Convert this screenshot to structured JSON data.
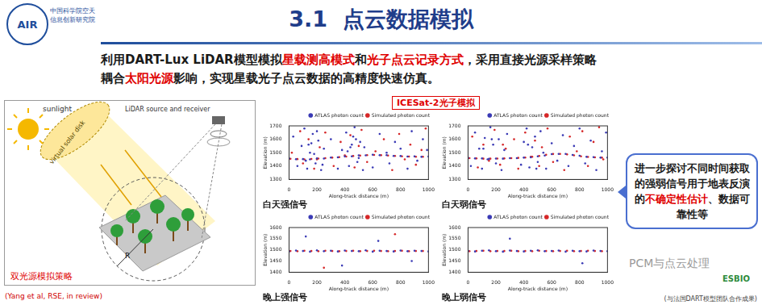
{
  "header": {
    "logo": {
      "abbr": "AIR",
      "org": "中国科学院空天信息创新研究院"
    },
    "title": "3.1  点云数据模拟"
  },
  "intro": [
    [
      {
        "text": "利用DART-Lux LiDAR模型模拟",
        "highlight": false
      },
      {
        "text": "星载测高模式",
        "highlight": true
      },
      {
        "text": "和",
        "highlight": false
      },
      {
        "text": "光子点云记录方式",
        "highlight": true
      },
      {
        "text": "，采用直接光源采样策略",
        "highlight": false
      }
    ],
    [
      {
        "text": "耦合",
        "highlight": false
      },
      {
        "text": "太阳光源",
        "highlight": true
      },
      {
        "text": "影响，实现星载光子点云数据的高精度快速仿真。",
        "highlight": false
      }
    ]
  ],
  "diagram": {
    "sunlight": "sunlight",
    "disk": "virtual solar disk",
    "lidar": "LiDAR source and receiver",
    "radius": "R",
    "caption": "双光源模拟策略",
    "citation": "(Yang et al, RSE, in review)"
  },
  "panel_title": "ICESat-2光子模拟",
  "callout": [
    {
      "text": "进一步探讨不同时间获取的强弱信号用于地表反演的",
      "highlight": false
    },
    {
      "text": "不确定性估计",
      "highlight": true
    },
    {
      "text": "、数据可靠性等",
      "highlight": false
    }
  ],
  "footer": {
    "watermark": "PCM与点云处理",
    "logo": "ESBIO",
    "note": "(与法国DART模型团队合作成果)"
  },
  "chart_data": [
    {
      "type": "scatter",
      "title": "白天强信号",
      "x_label": "Along-track distance (m)",
      "y_label": "Elevation (m)",
      "xlim": [
        0,
        1000
      ],
      "xticks": [
        0,
        200,
        400,
        600,
        800,
        1000
      ],
      "ylim": [
        1300,
        1700
      ],
      "yticks": [
        1300,
        1400,
        1500,
        1600,
        1700
      ],
      "grid": false,
      "legend": "top right",
      "series": [
        {
          "name": "ATLAS photon count",
          "color": "#3a3ab5",
          "marker": "circle",
          "x": [
            0,
            50,
            100,
            150,
            200,
            250,
            300,
            350,
            400,
            450,
            500,
            550,
            600,
            650,
            700,
            750,
            800,
            850,
            900,
            950,
            1000,
            30,
            60,
            90,
            110,
            130,
            150,
            170,
            190,
            210,
            230,
            250,
            120,
            160,
            200,
            240,
            300,
            350,
            380,
            410,
            430,
            450,
            470,
            490,
            510,
            530,
            420,
            460,
            500,
            540,
            600,
            650,
            700,
            720,
            760,
            800,
            850,
            880,
            920,
            960,
            990,
            140,
            180,
            440,
            480
          ],
          "values": [
            1457,
            1451,
            1452,
            1450,
            1457,
            1456,
            1464,
            1465,
            1472,
            1473,
            1480,
            1480,
            1485,
            1481,
            1482,
            1476,
            1475,
            1471,
            1472,
            1469,
            1471,
            1620,
            1400,
            1550,
            1680,
            1380,
            1500,
            1640,
            1420,
            1590,
            1370,
            1530,
            1440,
            1570,
            1660,
            1410,
            1600,
            1380,
            1520,
            1650,
            1400,
            1560,
            1690,
            1430,
            1580,
            1370,
            1510,
            1620,
            1460,
            1540,
            1390,
            1640,
            1500,
            1420,
            1580,
            1530,
            1380,
            1660,
            1440,
            1600,
            1520,
            1560,
            1490,
            1540,
            1600
          ]
        },
        {
          "name": "Simulated photon count",
          "color": "#d62728",
          "marker": "circle",
          "x": [
            10,
            60,
            110,
            160,
            210,
            260,
            310,
            360,
            410,
            460,
            510,
            560,
            610,
            660,
            710,
            760,
            810,
            860,
            910,
            960,
            20,
            80,
            100,
            140,
            180,
            220,
            260,
            320,
            370,
            400,
            440,
            470,
            500,
            520,
            560,
            620,
            680,
            740,
            790,
            830,
            870,
            910,
            950,
            980,
            200
          ],
          "values": [
            1454,
            1452,
            1450,
            1453,
            1456,
            1459,
            1463,
            1467,
            1471,
            1475,
            1478,
            1482,
            1483,
            1481,
            1479,
            1476,
            1473,
            1471,
            1470,
            1470,
            1500,
            1660,
            1420,
            1600,
            1380,
            1540,
            1650,
            1400,
            1580,
            1480,
            1630,
            1390,
            1550,
            1670,
            1430,
            1510,
            1600,
            1370,
            1640,
            1450,
            1560,
            1410,
            1520,
            1680,
            1450
          ]
        }
      ]
    },
    {
      "type": "scatter",
      "title": "白天弱信号",
      "x_label": "Along-track distance (m)",
      "y_label": "Elevation (m)",
      "xlim": [
        0,
        1000
      ],
      "xticks": [
        0,
        200,
        400,
        600,
        800,
        1000
      ],
      "ylim": [
        1300,
        1700
      ],
      "yticks": [
        1300,
        1400,
        1500,
        1600,
        1700
      ],
      "grid": false,
      "legend": "top right",
      "series": [
        {
          "name": "ATLAS photon count",
          "color": "#3a3ab5",
          "marker": "circle",
          "x": [
            0,
            50,
            100,
            150,
            200,
            250,
            300,
            350,
            400,
            450,
            500,
            550,
            600,
            650,
            700,
            750,
            800,
            850,
            900,
            950,
            1000,
            20,
            50,
            80,
            100,
            120,
            140,
            160,
            180,
            200,
            220,
            240,
            260,
            280,
            380,
            400,
            420,
            440,
            460,
            480,
            500,
            520,
            540,
            560,
            600,
            640,
            680,
            720,
            760,
            800,
            840,
            880,
            920,
            960,
            990,
            110,
            170,
            430,
            490
          ],
          "values": [
            1461,
            1457,
            1457,
            1454,
            1456,
            1455,
            1459,
            1459,
            1463,
            1465,
            1473,
            1479,
            1489,
            1491,
            1491,
            1483,
            1477,
            1469,
            1467,
            1463,
            1463,
            1400,
            1650,
            1530,
            1380,
            1610,
            1450,
            1690,
            1560,
            1420,
            1600,
            1370,
            1520,
            1640,
            1410,
            1580,
            1680,
            1390,
            1540,
            1620,
            1430,
            1660,
            1500,
            1380,
            1570,
            1440,
            1630,
            1400,
            1550,
            1680,
            1420,
            1590,
            1370,
            1510,
            1650,
            1530,
            1600,
            1560,
            1380
          ]
        },
        {
          "name": "Simulated photon count",
          "color": "#d62728",
          "marker": "circle",
          "x": [
            10,
            60,
            110,
            160,
            210,
            260,
            310,
            360,
            410,
            460,
            510,
            560,
            610,
            660,
            710,
            760,
            810,
            860,
            910,
            960,
            30,
            70,
            110,
            150,
            190,
            230,
            270,
            330,
            360,
            410,
            450,
            480,
            510,
            530,
            570,
            610,
            690,
            730,
            780,
            820,
            860,
            900,
            940,
            970,
            250
          ],
          "values": [
            1459,
            1457,
            1455,
            1455,
            1456,
            1457,
            1459,
            1461,
            1464,
            1469,
            1476,
            1484,
            1490,
            1491,
            1487,
            1480,
            1473,
            1468,
            1465,
            1463,
            1620,
            1390,
            1560,
            1440,
            1670,
            1410,
            1530,
            1600,
            1380,
            1650,
            1470,
            1590,
            1400,
            1540,
            1680,
            1430,
            1370,
            1620,
            1510,
            1660,
            1400,
            1580,
            1690,
            1450,
            1560
          ]
        }
      ]
    },
    {
      "type": "scatter",
      "title": "晚上强信号",
      "x_label": "Along-track distance (m)",
      "y_label": "Elevation (m)",
      "xlim": [
        0,
        1000
      ],
      "xticks": [
        0,
        200,
        400,
        600,
        800,
        1000
      ],
      "ylim": [
        1400,
        1600
      ],
      "yticks": [
        1400,
        1450,
        1500,
        1550,
        1600
      ],
      "grid": false,
      "legend": "top right",
      "series": [
        {
          "name": "ATLAS photon count",
          "color": "#3a3ab5",
          "marker": "circle",
          "x": [
            0,
            50,
            100,
            150,
            200,
            250,
            300,
            350,
            400,
            450,
            500,
            550,
            600,
            650,
            700,
            750,
            800,
            850,
            900,
            950,
            1000,
            120,
            380,
            640,
            880
          ],
          "values": [
            1493,
            1497,
            1495,
            1492,
            1498,
            1494,
            1496,
            1493,
            1497,
            1495,
            1494,
            1498,
            1492,
            1496,
            1495,
            1493,
            1497,
            1494,
            1496,
            1495,
            1493,
            1560,
            1430,
            1540,
            1450
          ]
        },
        {
          "name": "Simulated photon count",
          "color": "#d62728",
          "marker": "circle",
          "x": [
            10,
            60,
            110,
            160,
            210,
            260,
            310,
            360,
            410,
            460,
            510,
            560,
            610,
            660,
            710,
            760,
            810,
            860,
            910,
            960,
            250,
            760
          ],
          "values": [
            1495,
            1494,
            1496,
            1495,
            1494,
            1496,
            1495,
            1494,
            1495,
            1496,
            1494,
            1495,
            1496,
            1495,
            1494,
            1495,
            1496,
            1494,
            1495,
            1495,
            1420,
            1570
          ]
        }
      ]
    },
    {
      "type": "scatter",
      "title": "晚上弱信号",
      "x_label": "Along-track distance (m)",
      "y_label": "Elevation (m)",
      "xlim": [
        0,
        1000
      ],
      "xticks": [
        0,
        200,
        400,
        600,
        800,
        1000
      ],
      "ylim": [
        1400,
        1600
      ],
      "yticks": [
        1400,
        1450,
        1500,
        1550,
        1600
      ],
      "grid": false,
      "legend": "top right",
      "series": [
        {
          "name": "ATLAS photon count",
          "color": "#3a3ab5",
          "marker": "circle",
          "x": [
            0,
            50,
            100,
            150,
            200,
            250,
            300,
            350,
            400,
            450,
            500,
            550,
            600,
            650,
            700,
            750,
            800,
            850,
            900,
            950,
            1000,
            300,
            820
          ],
          "values": [
            1495,
            1493,
            1496,
            1498,
            1494,
            1492,
            1497,
            1495,
            1493,
            1496,
            1498,
            1494,
            1495,
            1497,
            1492,
            1496,
            1494,
            1493,
            1497,
            1495,
            1494,
            1550,
            1440
          ]
        },
        {
          "name": "Simulated photon count",
          "color": "#d62728",
          "marker": "circle",
          "x": [
            10,
            60,
            110,
            160,
            210,
            260,
            310,
            360,
            410,
            460,
            510,
            560,
            610,
            660,
            710,
            760,
            810,
            860,
            910,
            960
          ],
          "values": [
            1494,
            1495,
            1496,
            1494,
            1495,
            1495,
            1496,
            1494,
            1495,
            1494,
            1496,
            1495,
            1494,
            1495,
            1496,
            1494,
            1495,
            1496,
            1495,
            1494
          ]
        }
      ]
    }
  ]
}
